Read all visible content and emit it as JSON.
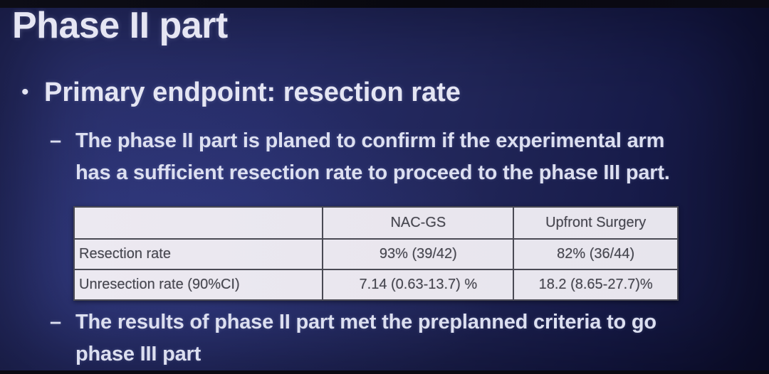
{
  "content": {
    "title": "Phase II part",
    "bullet_marker": "•",
    "dash_marker": "–",
    "primary_bullet": "Primary endpoint: resection rate",
    "sub_bullets": [
      {
        "lines": [
          "The phase II part is planed to confirm if the experimental arm",
          "has a sufficient resection rate to proceed to the phase III part."
        ]
      },
      {
        "lines": [
          "The results of phase II part met the preplanned criteria to go",
          "phase III part"
        ]
      }
    ]
  },
  "table": {
    "columns": [
      "",
      "NAC-GS",
      "Upfront Surgery"
    ],
    "rows": [
      {
        "label": "Resection rate",
        "values": [
          "93% (39/42)",
          "82% (36/44)"
        ]
      },
      {
        "label": "Unresection rate (90%CI)",
        "values": [
          "7.14 (0.63-13.7) %",
          "18.2 (8.65-27.7)%"
        ]
      }
    ]
  },
  "colors": {
    "background_navy": "#272d68",
    "background_dark_edge": "#101233",
    "text_light": "#e4e5f3",
    "table_background": "#eae7ef",
    "table_border": "#4a4a54",
    "table_text": "#45454e",
    "bezel_dark": "#0a0a13"
  }
}
